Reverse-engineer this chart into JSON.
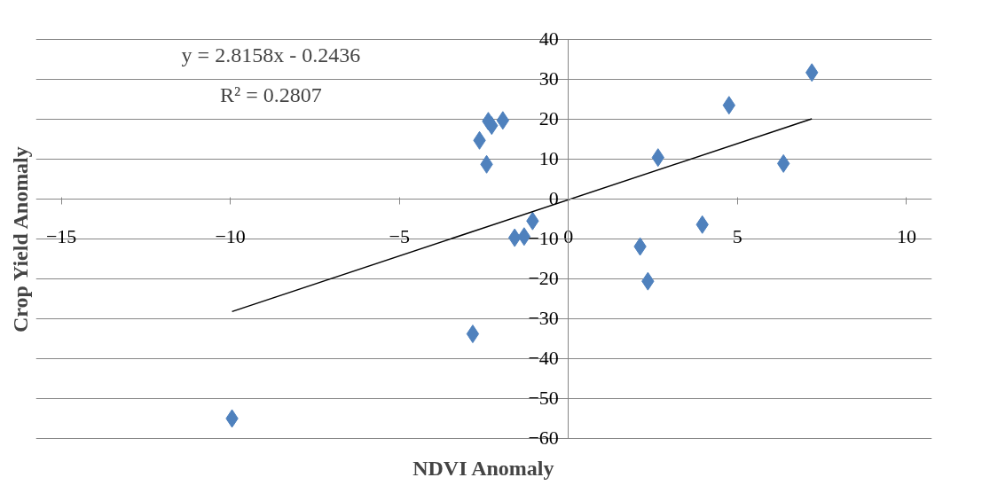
{
  "chart_data": {
    "type": "scatter",
    "xlabel": "NDVI Anomaly",
    "ylabel": "Crop Yield Anomaly",
    "annotations": [
      "y = 2.8158x - 0.2436",
      "R² = 0.2807"
    ],
    "xlim": [
      -15,
      10
    ],
    "xticks": [
      -15,
      -10,
      -5,
      0,
      5,
      10
    ],
    "ylim": [
      -60,
      40
    ],
    "yticks": [
      -60,
      -50,
      -40,
      -30,
      -20,
      -10,
      0,
      10,
      20,
      30,
      40
    ],
    "grid": "y",
    "marker": "diamond",
    "series": [
      {
        "color": "#4f81bd",
        "x": [
          -9.95,
          -2.83,
          -2.63,
          -2.42,
          -2.37,
          -2.27,
          -1.94,
          -1.59,
          -1.31,
          -1.06,
          2.12,
          2.35,
          2.65,
          3.96,
          4.75,
          6.36,
          7.2
        ],
        "values": [
          -55.1,
          -33.9,
          14.6,
          8.6,
          19.4,
          18.3,
          19.6,
          -9.8,
          -9.5,
          -5.6,
          -12,
          -20.7,
          10.3,
          -6.5,
          23.4,
          8.8,
          31.6
        ]
      },
      {
        "type": "line",
        "marker": "none",
        "color": "#000000",
        "x": [
          -9.95,
          7.2
        ],
        "values": [
          -28.3,
          20.0
        ]
      }
    ]
  }
}
